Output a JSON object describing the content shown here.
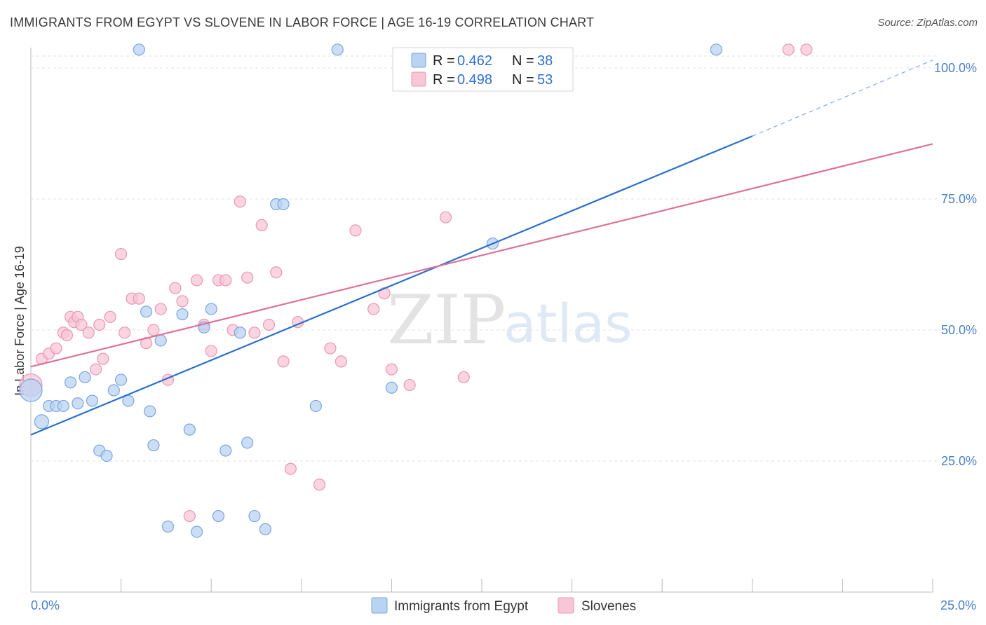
{
  "header": {
    "title": "IMMIGRANTS FROM EGYPT VS SLOVENE IN LABOR FORCE | AGE 16-19 CORRELATION CHART",
    "source": "Source: ZipAtlas.com"
  },
  "watermark": {
    "zip": "ZIP",
    "atlas": "atlas"
  },
  "legend": {
    "r_label": "R =",
    "n_label": "N =",
    "rows": [
      {
        "r": "0.462",
        "n": "38"
      },
      {
        "r": "0.498",
        "n": "53"
      }
    ]
  },
  "colors": {
    "blue_fill": "#b9d3f3",
    "blue_stroke": "#7aa6de",
    "blue_line": "#2a6fcd",
    "pink_fill": "#f8c6d6",
    "pink_stroke": "#ea97b3",
    "pink_line": "#e0709a"
  },
  "chart_data": {
    "type": "scatter",
    "title": "IMMIGRANTS FROM EGYPT VS SLOVENE IN LABOR FORCE | AGE 16-19 CORRELATION CHART",
    "xlabel": "",
    "ylabel": "In Labor Force | Age 16-19",
    "xlim": [
      0,
      25
    ],
    "ylim": [
      0,
      102
    ],
    "x_tick_labels": [
      "0.0%",
      "25.0%"
    ],
    "y_tick_values": [
      25,
      50,
      75,
      100
    ],
    "y_tick_labels": [
      "25.0%",
      "50.0%",
      "75.0%",
      "100.0%"
    ],
    "grid": true,
    "series": [
      {
        "name": "Immigrants from Egypt",
        "r": 0.462,
        "n": 38,
        "trend": {
          "x": [
            0,
            20
          ],
          "y": [
            30.0,
            87.0
          ],
          "dashed_to": [
            25,
            101.5
          ]
        },
        "points": [
          [
            0.0,
            38.5,
            16
          ],
          [
            0.3,
            32.5,
            10
          ],
          [
            0.5,
            35.5,
            8
          ],
          [
            0.7,
            35.5,
            8
          ],
          [
            0.9,
            35.5,
            8
          ],
          [
            1.1,
            40.0,
            8
          ],
          [
            1.3,
            36.0,
            8
          ],
          [
            1.5,
            41.0,
            8
          ],
          [
            1.7,
            36.5,
            8
          ],
          [
            1.9,
            27.0,
            8
          ],
          [
            2.1,
            26.0,
            8
          ],
          [
            2.3,
            38.5,
            8
          ],
          [
            2.5,
            40.5,
            8
          ],
          [
            2.7,
            36.5,
            8
          ],
          [
            3.0,
            103.5,
            8
          ],
          [
            3.2,
            53.5,
            8
          ],
          [
            3.3,
            34.5,
            8
          ],
          [
            3.4,
            28.0,
            8
          ],
          [
            3.6,
            48.0,
            8
          ],
          [
            3.8,
            12.5,
            8
          ],
          [
            4.2,
            53.0,
            8
          ],
          [
            4.4,
            31.0,
            8
          ],
          [
            4.6,
            11.5,
            8
          ],
          [
            4.8,
            50.5,
            8
          ],
          [
            5.0,
            54.0,
            8
          ],
          [
            5.2,
            14.5,
            8
          ],
          [
            5.4,
            27.0,
            8
          ],
          [
            5.8,
            49.5,
            8
          ],
          [
            6.0,
            28.5,
            8
          ],
          [
            6.2,
            14.5,
            8
          ],
          [
            6.5,
            12.0,
            8
          ],
          [
            6.8,
            74.0,
            8
          ],
          [
            7.0,
            74.0,
            8
          ],
          [
            7.9,
            35.5,
            8
          ],
          [
            8.5,
            103.5,
            8
          ],
          [
            10.0,
            39.0,
            8
          ],
          [
            12.8,
            66.5,
            8
          ],
          [
            19.0,
            103.5,
            8
          ]
        ]
      },
      {
        "name": "Slovenes",
        "r": 0.498,
        "n": 53,
        "trend": {
          "x": [
            0,
            25
          ],
          "y": [
            43.0,
            85.5
          ]
        },
        "points": [
          [
            0.0,
            39.5,
            16
          ],
          [
            0.3,
            44.5,
            8
          ],
          [
            0.5,
            45.5,
            8
          ],
          [
            0.7,
            46.5,
            8
          ],
          [
            0.9,
            49.5,
            8
          ],
          [
            1.0,
            49.0,
            8
          ],
          [
            1.1,
            52.5,
            8
          ],
          [
            1.2,
            51.5,
            8
          ],
          [
            1.3,
            52.5,
            8
          ],
          [
            1.4,
            51.0,
            8
          ],
          [
            1.6,
            49.5,
            8
          ],
          [
            1.8,
            42.5,
            8
          ],
          [
            1.9,
            51.0,
            8
          ],
          [
            2.0,
            44.5,
            8
          ],
          [
            2.2,
            52.5,
            8
          ],
          [
            2.5,
            64.5,
            8
          ],
          [
            2.6,
            49.5,
            8
          ],
          [
            2.8,
            56.0,
            8
          ],
          [
            3.0,
            56.0,
            8
          ],
          [
            3.2,
            47.5,
            8
          ],
          [
            3.4,
            50.0,
            8
          ],
          [
            3.6,
            54.0,
            8
          ],
          [
            3.8,
            40.5,
            8
          ],
          [
            4.0,
            58.0,
            8
          ],
          [
            4.2,
            55.5,
            8
          ],
          [
            4.4,
            14.5,
            8
          ],
          [
            4.6,
            59.5,
            8
          ],
          [
            4.8,
            51.0,
            8
          ],
          [
            5.0,
            46.0,
            8
          ],
          [
            5.2,
            59.5,
            8
          ],
          [
            5.4,
            59.5,
            8
          ],
          [
            5.6,
            50.0,
            8
          ],
          [
            5.8,
            74.5,
            8
          ],
          [
            6.0,
            60.0,
            8
          ],
          [
            6.2,
            49.5,
            8
          ],
          [
            6.4,
            70.0,
            8
          ],
          [
            6.6,
            51.0,
            8
          ],
          [
            6.8,
            61.0,
            8
          ],
          [
            7.0,
            44.0,
            8
          ],
          [
            7.2,
            23.5,
            8
          ],
          [
            7.4,
            51.5,
            8
          ],
          [
            8.0,
            20.5,
            8
          ],
          [
            8.3,
            46.5,
            8
          ],
          [
            8.6,
            44.0,
            8
          ],
          [
            9.0,
            69.0,
            8
          ],
          [
            9.5,
            54.0,
            8
          ],
          [
            9.8,
            57.0,
            8
          ],
          [
            10.0,
            42.5,
            8
          ],
          [
            10.5,
            39.5,
            8
          ],
          [
            11.5,
            71.5,
            8
          ],
          [
            12.0,
            41.0,
            8
          ],
          [
            21.0,
            103.5,
            8
          ],
          [
            21.5,
            103.5,
            8
          ]
        ]
      }
    ],
    "legend_position": "top-center"
  }
}
